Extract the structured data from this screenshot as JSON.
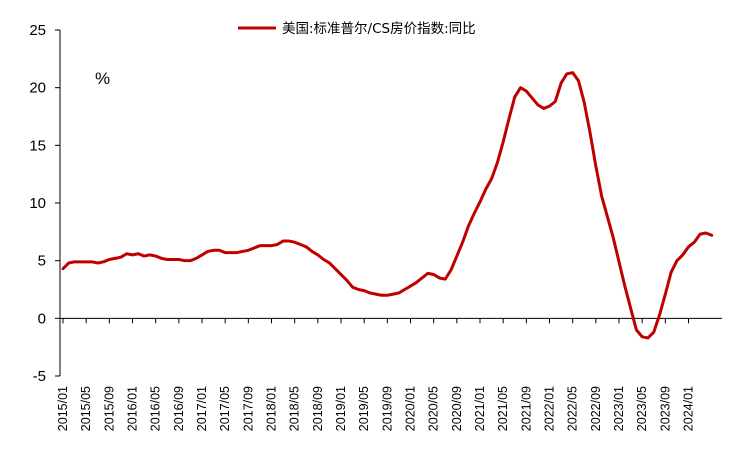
{
  "chart_data": {
    "type": "line",
    "unit_label": "%",
    "ylim": [
      -5,
      25
    ],
    "y_ticks": [
      -5,
      0,
      5,
      10,
      15,
      20,
      25
    ],
    "x_tick_labels": [
      "2015/01",
      "2015/05",
      "2015/09",
      "2016/01",
      "2016/05",
      "2016/09",
      "2017/01",
      "2017/05",
      "2017/09",
      "2018/01",
      "2018/05",
      "2018/09",
      "2019/01",
      "2019/05",
      "2019/09",
      "2020/01",
      "2020/05",
      "2020/09",
      "2021/01",
      "2021/05",
      "2021/09",
      "2022/01",
      "2022/05",
      "2022/09",
      "2023/01",
      "2023/05",
      "2023/09",
      "2024/01"
    ],
    "grid": false,
    "legend_position": "top-center",
    "series": [
      {
        "name": "美国:标准普尔/CS房价指数:同比",
        "color": "#C00000",
        "x": [
          "2015/01",
          "2015/02",
          "2015/03",
          "2015/04",
          "2015/05",
          "2015/06",
          "2015/07",
          "2015/08",
          "2015/09",
          "2015/10",
          "2015/11",
          "2015/12",
          "2016/01",
          "2016/02",
          "2016/03",
          "2016/04",
          "2016/05",
          "2016/06",
          "2016/07",
          "2016/08",
          "2016/09",
          "2016/10",
          "2016/11",
          "2016/12",
          "2017/01",
          "2017/02",
          "2017/03",
          "2017/04",
          "2017/05",
          "2017/06",
          "2017/07",
          "2017/08",
          "2017/09",
          "2017/10",
          "2017/11",
          "2017/12",
          "2018/01",
          "2018/02",
          "2018/03",
          "2018/04",
          "2018/05",
          "2018/06",
          "2018/07",
          "2018/08",
          "2018/09",
          "2018/10",
          "2018/11",
          "2018/12",
          "2019/01",
          "2019/02",
          "2019/03",
          "2019/04",
          "2019/05",
          "2019/06",
          "2019/07",
          "2019/08",
          "2019/09",
          "2019/10",
          "2019/11",
          "2019/12",
          "2020/01",
          "2020/02",
          "2020/03",
          "2020/04",
          "2020/05",
          "2020/06",
          "2020/07",
          "2020/08",
          "2020/09",
          "2020/10",
          "2020/11",
          "2020/12",
          "2021/01",
          "2021/02",
          "2021/03",
          "2021/04",
          "2021/05",
          "2021/06",
          "2021/07",
          "2021/08",
          "2021/09",
          "2021/10",
          "2021/11",
          "2021/12",
          "2022/01",
          "2022/02",
          "2022/03",
          "2022/04",
          "2022/05",
          "2022/06",
          "2022/07",
          "2022/08",
          "2022/09",
          "2022/10",
          "2022/11",
          "2022/12",
          "2023/01",
          "2023/02",
          "2023/03",
          "2023/04",
          "2023/05",
          "2023/06",
          "2023/07",
          "2023/08",
          "2023/09",
          "2023/10",
          "2023/11",
          "2023/12",
          "2024/01",
          "2024/02",
          "2024/03",
          "2024/04",
          "2024/05"
        ],
        "values": [
          4.3,
          4.8,
          4.9,
          4.9,
          4.9,
          4.9,
          4.8,
          4.9,
          5.1,
          5.2,
          5.3,
          5.6,
          5.5,
          5.6,
          5.4,
          5.5,
          5.4,
          5.2,
          5.1,
          5.1,
          5.1,
          5.0,
          5.0,
          5.2,
          5.5,
          5.8,
          5.9,
          5.9,
          5.7,
          5.7,
          5.7,
          5.8,
          5.9,
          6.1,
          6.3,
          6.3,
          6.3,
          6.4,
          6.7,
          6.7,
          6.6,
          6.4,
          6.2,
          5.8,
          5.5,
          5.1,
          4.8,
          4.3,
          3.8,
          3.3,
          2.7,
          2.5,
          2.4,
          2.2,
          2.1,
          2.0,
          2.0,
          2.1,
          2.2,
          2.5,
          2.8,
          3.1,
          3.5,
          3.9,
          3.8,
          3.5,
          3.4,
          4.2,
          5.4,
          6.6,
          8.0,
          9.1,
          10.1,
          11.2,
          12.1,
          13.5,
          15.3,
          17.3,
          19.2,
          20.0,
          19.7,
          19.1,
          18.5,
          18.2,
          18.4,
          18.8,
          20.4,
          21.2,
          21.3,
          20.6,
          18.7,
          16.1,
          13.2,
          10.6,
          8.8,
          7.0,
          4.9,
          2.8,
          0.9,
          -1.0,
          -1.6,
          -1.7,
          -1.2,
          0.3,
          2.1,
          4.0,
          5.0,
          5.5,
          6.2,
          6.6,
          7.3,
          7.4,
          7.2
        ]
      }
    ]
  }
}
